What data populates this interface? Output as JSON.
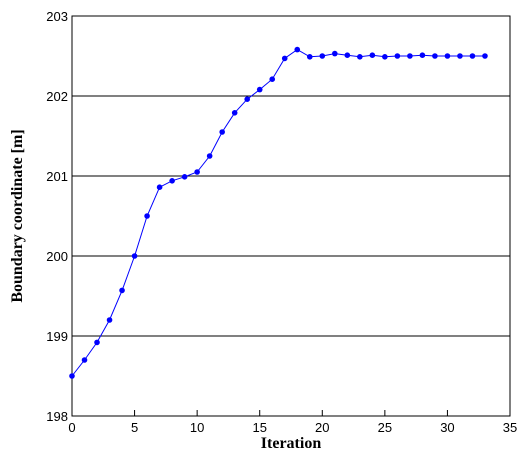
{
  "chart_data": {
    "type": "line",
    "title": "",
    "xlabel": "Iteration",
    "ylabel": "Boundary coordinate [m]",
    "xlim": [
      0,
      35
    ],
    "ylim": [
      198,
      203
    ],
    "xticks": [
      0,
      5,
      10,
      15,
      20,
      25,
      30,
      35
    ],
    "yticks": [
      198,
      199,
      200,
      201,
      202,
      203
    ],
    "grid": "horizontal",
    "legend": "none",
    "series": [
      {
        "color": "#0000ff",
        "marker": "circle",
        "x": [
          0,
          1,
          2,
          3,
          4,
          5,
          6,
          7,
          8,
          9,
          10,
          11,
          12,
          13,
          14,
          15,
          16,
          17,
          18,
          19,
          20,
          21,
          22,
          23,
          24,
          25,
          26,
          27,
          28,
          29,
          30,
          31,
          32,
          33
        ],
        "y": [
          198.5,
          198.7,
          198.92,
          199.2,
          199.57,
          200.0,
          200.5,
          200.86,
          200.94,
          200.99,
          201.05,
          201.25,
          201.55,
          201.79,
          201.96,
          202.08,
          202.21,
          202.47,
          202.58,
          202.49,
          202.5,
          202.53,
          202.51,
          202.49,
          202.51,
          202.49,
          202.5,
          202.5,
          202.51,
          202.5,
          202.5,
          202.5,
          202.5,
          202.5
        ]
      }
    ]
  }
}
